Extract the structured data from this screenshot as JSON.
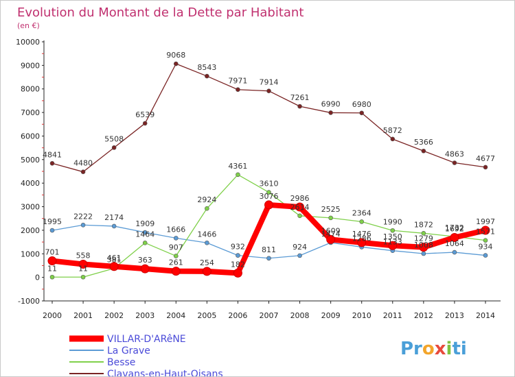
{
  "chart_data": {
    "type": "line",
    "title": "Evolution du Montant de la Dette par Habitant",
    "subtitle": "(en €)",
    "x": [
      "2000",
      "2001",
      "2002",
      "2003",
      "2004",
      "2005",
      "2006",
      "2007",
      "2008",
      "2009",
      "2010",
      "2011",
      "2012",
      "2013",
      "2014"
    ],
    "ylim": [
      -1000,
      10000
    ],
    "yticks": [
      -1000,
      0,
      1000,
      2000,
      3000,
      4000,
      5000,
      6000,
      7000,
      8000,
      9000,
      10000
    ],
    "grid": false,
    "legend_position": "bottom-left",
    "series": [
      {
        "name": "VILLAR-D'ARêNE",
        "color": "#ff0000",
        "values": [
          701,
          558,
          461,
          363,
          261,
          254,
          182,
          3076,
          2986,
          1609,
          1476,
          1350,
          1279,
          1692,
          1997
        ]
      },
      {
        "name": "La Grave",
        "color": "#5b9bd5",
        "values": [
          1995,
          2222,
          2174,
          1909,
          1666,
          1466,
          932,
          811,
          924,
          1474,
          1286,
          1133,
          1008,
          1064,
          934
        ]
      },
      {
        "name": "Besse",
        "color": "#7fd04a",
        "values": [
          11,
          11,
          381,
          1464,
          907,
          2924,
          4361,
          3610,
          2614,
          2525,
          2364,
          1990,
          1872,
          1732,
          1571
        ]
      },
      {
        "name": "Clavans-en-Haut-Oisans",
        "color": "#7a2424",
        "values": [
          4841,
          4480,
          5508,
          6539,
          9068,
          8543,
          7971,
          7914,
          7261,
          6990,
          6980,
          5872,
          5366,
          4863,
          4677
        ]
      }
    ]
  },
  "logo": {
    "parts": [
      "Pr",
      "o",
      "x",
      "i",
      "ti"
    ],
    "colors": [
      "#4a9fd8",
      "#f3a52b",
      "#e84a3c",
      "#7fc241",
      "#4a9fd8"
    ]
  }
}
